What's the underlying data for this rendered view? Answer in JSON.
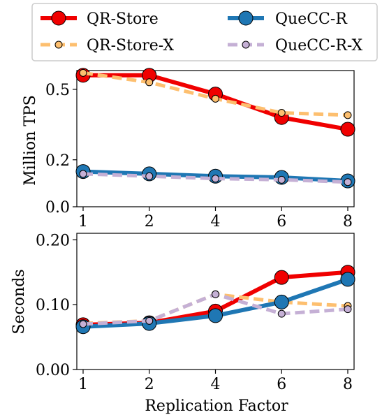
{
  "legend": {
    "placement": "top",
    "entries": [
      {
        "label": "QR-Store",
        "color": "#f00000",
        "style": "solid",
        "marker": "large-circle"
      },
      {
        "label": "QueCC-R",
        "color": "#1f77b4",
        "style": "solid",
        "marker": "large-circle"
      },
      {
        "label": "QR-Store-X",
        "color": "#fdbf6f",
        "style": "dashed",
        "marker": "small-circle"
      },
      {
        "label": "QueCC-R-X",
        "color": "#c5b0d5",
        "style": "dashed",
        "marker": "small-circle"
      }
    ]
  },
  "chart_data": [
    {
      "type": "line",
      "title": "",
      "xlabel": "",
      "ylabel": "Million TPS",
      "categories": [
        "1",
        "2",
        "4",
        "6",
        "8"
      ],
      "yticks": [
        "0.0",
        "0.2",
        "0.5"
      ],
      "ytick_values": [
        0.0,
        0.2,
        0.5
      ],
      "ylim": [
        0.0,
        0.58
      ],
      "grid": false,
      "series": [
        {
          "name": "QR-Store",
          "color": "#f00000",
          "style": "solid",
          "marker": "large",
          "values": [
            0.56,
            0.56,
            0.48,
            0.38,
            0.33
          ]
        },
        {
          "name": "QR-Store-X",
          "color": "#fdbf6f",
          "style": "dashed",
          "marker": "small",
          "values": [
            0.57,
            0.53,
            0.46,
            0.4,
            0.39
          ]
        },
        {
          "name": "QueCC-R",
          "color": "#1f77b4",
          "style": "solid",
          "marker": "large",
          "values": [
            0.15,
            0.14,
            0.13,
            0.125,
            0.11
          ]
        },
        {
          "name": "QueCC-R-X",
          "color": "#c5b0d5",
          "style": "dashed",
          "marker": "small",
          "values": [
            0.14,
            0.13,
            0.12,
            0.115,
            0.105
          ]
        }
      ]
    },
    {
      "type": "line",
      "title": "",
      "xlabel": "Replication Factor",
      "ylabel": "Seconds",
      "categories": [
        "1",
        "2",
        "4",
        "6",
        "8"
      ],
      "yticks": [
        "0.00",
        "0.10",
        "0.20"
      ],
      "ytick_values": [
        0.0,
        0.1,
        0.2
      ],
      "ylim": [
        0.0,
        0.21
      ],
      "grid": false,
      "series": [
        {
          "name": "QR-Store",
          "color": "#f00000",
          "style": "solid",
          "marker": "large",
          "values": [
            0.069,
            0.072,
            0.09,
            0.142,
            0.15
          ]
        },
        {
          "name": "QR-Store-X",
          "color": "#fdbf6f",
          "style": "dashed",
          "marker": "small",
          "values": [
            0.071,
            0.075,
            0.116,
            0.104,
            0.098
          ]
        },
        {
          "name": "QueCC-R",
          "color": "#1f77b4",
          "style": "solid",
          "marker": "large",
          "values": [
            0.066,
            0.071,
            0.083,
            0.104,
            0.139
          ]
        },
        {
          "name": "QueCC-R-X",
          "color": "#c5b0d5",
          "style": "dashed",
          "marker": "small",
          "values": [
            0.07,
            0.075,
            0.116,
            0.086,
            0.093
          ]
        }
      ]
    }
  ]
}
